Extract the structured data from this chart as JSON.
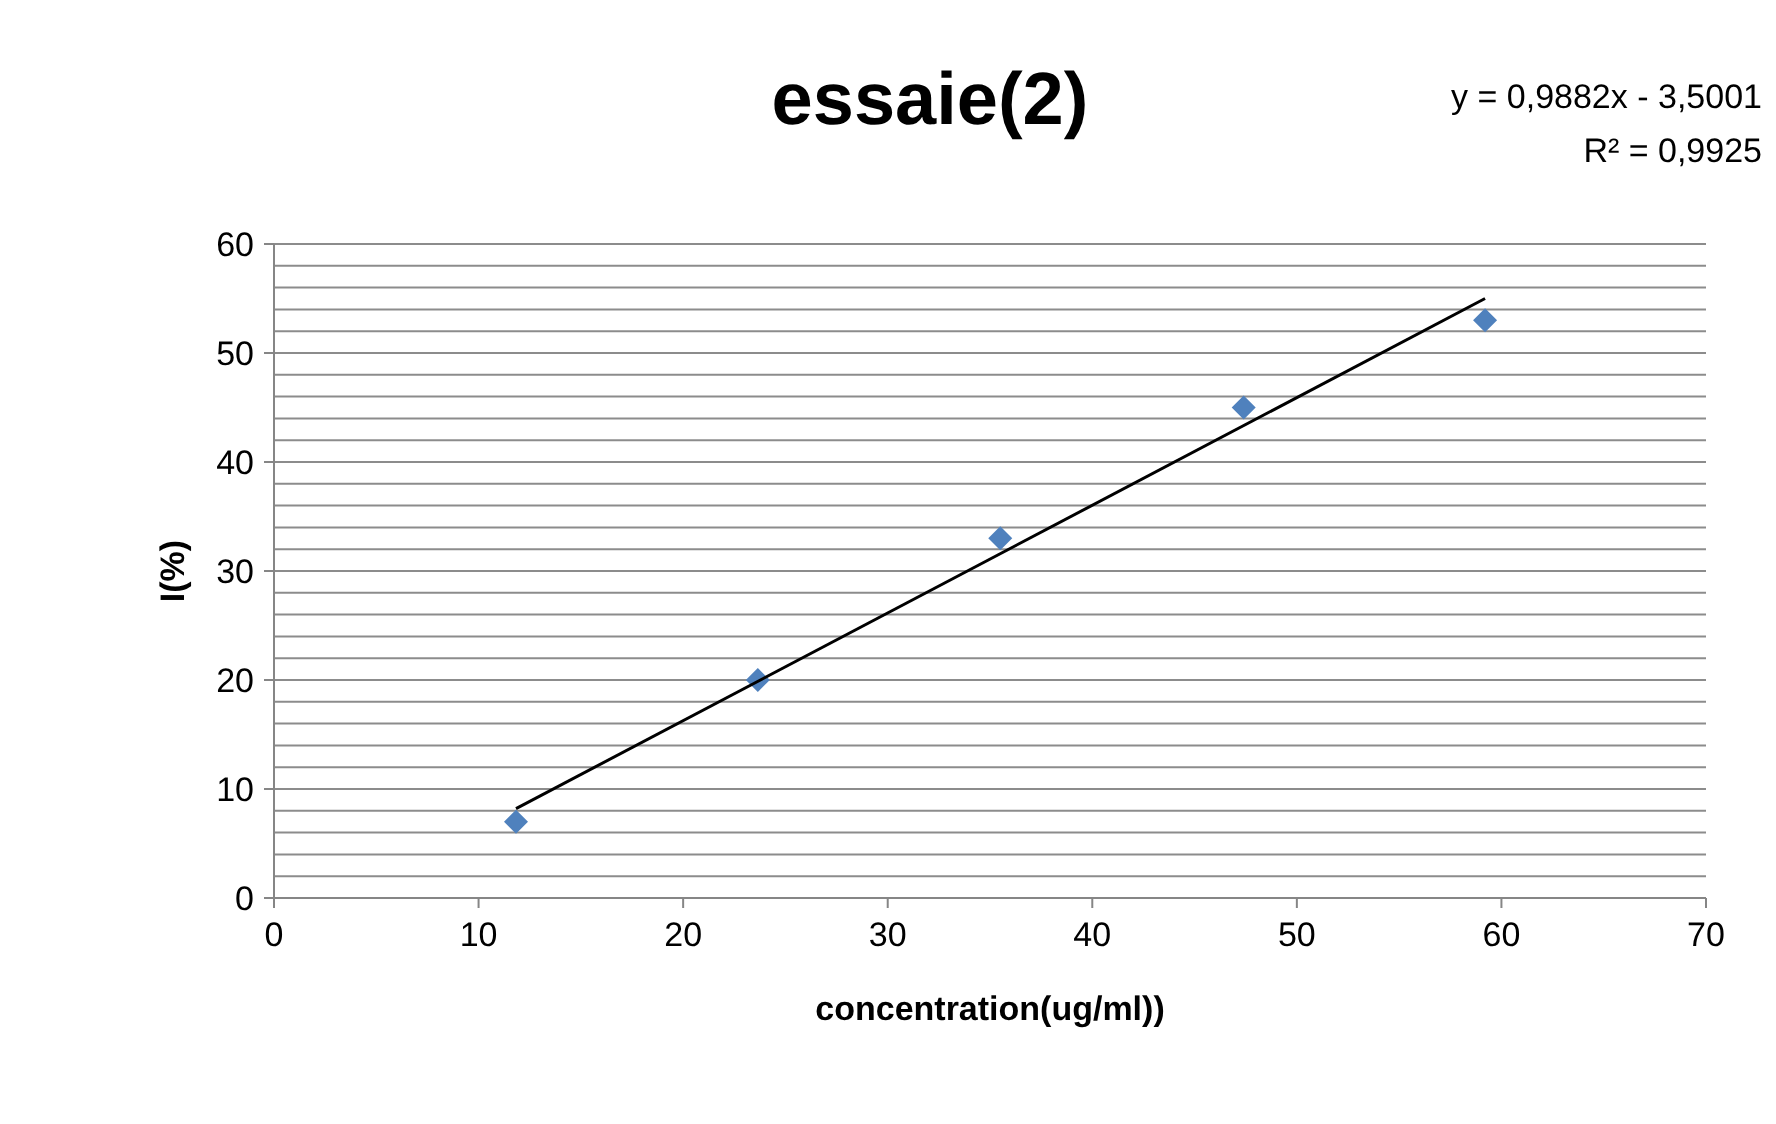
{
  "chart_data": {
    "type": "scatter",
    "title": "essaie(2)",
    "xlabel": "concentration(ug/ml))",
    "ylabel": "I(%)",
    "annotations": [
      "y = 0,9882x - 3,5001",
      "R² = 0,9925"
    ],
    "series": [
      {
        "color": "#4f81bd",
        "marker": "diamond",
        "x": [
          11.83,
          23.65,
          35.5,
          47.4,
          59.2
        ],
        "values": [
          7,
          20,
          33,
          45,
          53
        ]
      },
      {
        "type": "line",
        "color": "#000000",
        "marker": "none",
        "line_style": "solid",
        "x": [
          11.83,
          59.2
        ],
        "values": [
          8.2,
          55.0
        ]
      }
    ],
    "xlim": [
      0,
      70
    ],
    "xticks": [
      0,
      10,
      20,
      30,
      40,
      50,
      60,
      70
    ],
    "ylim": [
      0,
      60
    ],
    "yticks": [
      0,
      {
        "value": 2,
        "label": null
      },
      {
        "value": 4,
        "label": null
      },
      {
        "value": 6,
        "label": null
      },
      {
        "value": 8,
        "label": null
      },
      10,
      {
        "value": 12,
        "label": null
      },
      {
        "value": 14,
        "label": null
      },
      {
        "value": 16,
        "label": null
      },
      {
        "value": 18,
        "label": null
      },
      20,
      {
        "value": 22,
        "label": null
      },
      {
        "value": 24,
        "label": null
      },
      {
        "value": 26,
        "label": null
      },
      {
        "value": 28,
        "label": null
      },
      30,
      {
        "value": 32,
        "label": null
      },
      {
        "value": 34,
        "label": null
      },
      {
        "value": 36,
        "label": null
      },
      {
        "value": 38,
        "label": null
      },
      40,
      {
        "value": 42,
        "label": null
      },
      {
        "value": 44,
        "label": null
      },
      {
        "value": 46,
        "label": null
      },
      {
        "value": 48,
        "label": null
      },
      50,
      {
        "value": 52,
        "label": null
      },
      {
        "value": 54,
        "label": null
      },
      {
        "value": 56,
        "label": null
      },
      {
        "value": 58,
        "label": null
      },
      60
    ],
    "grid": "y"
  }
}
